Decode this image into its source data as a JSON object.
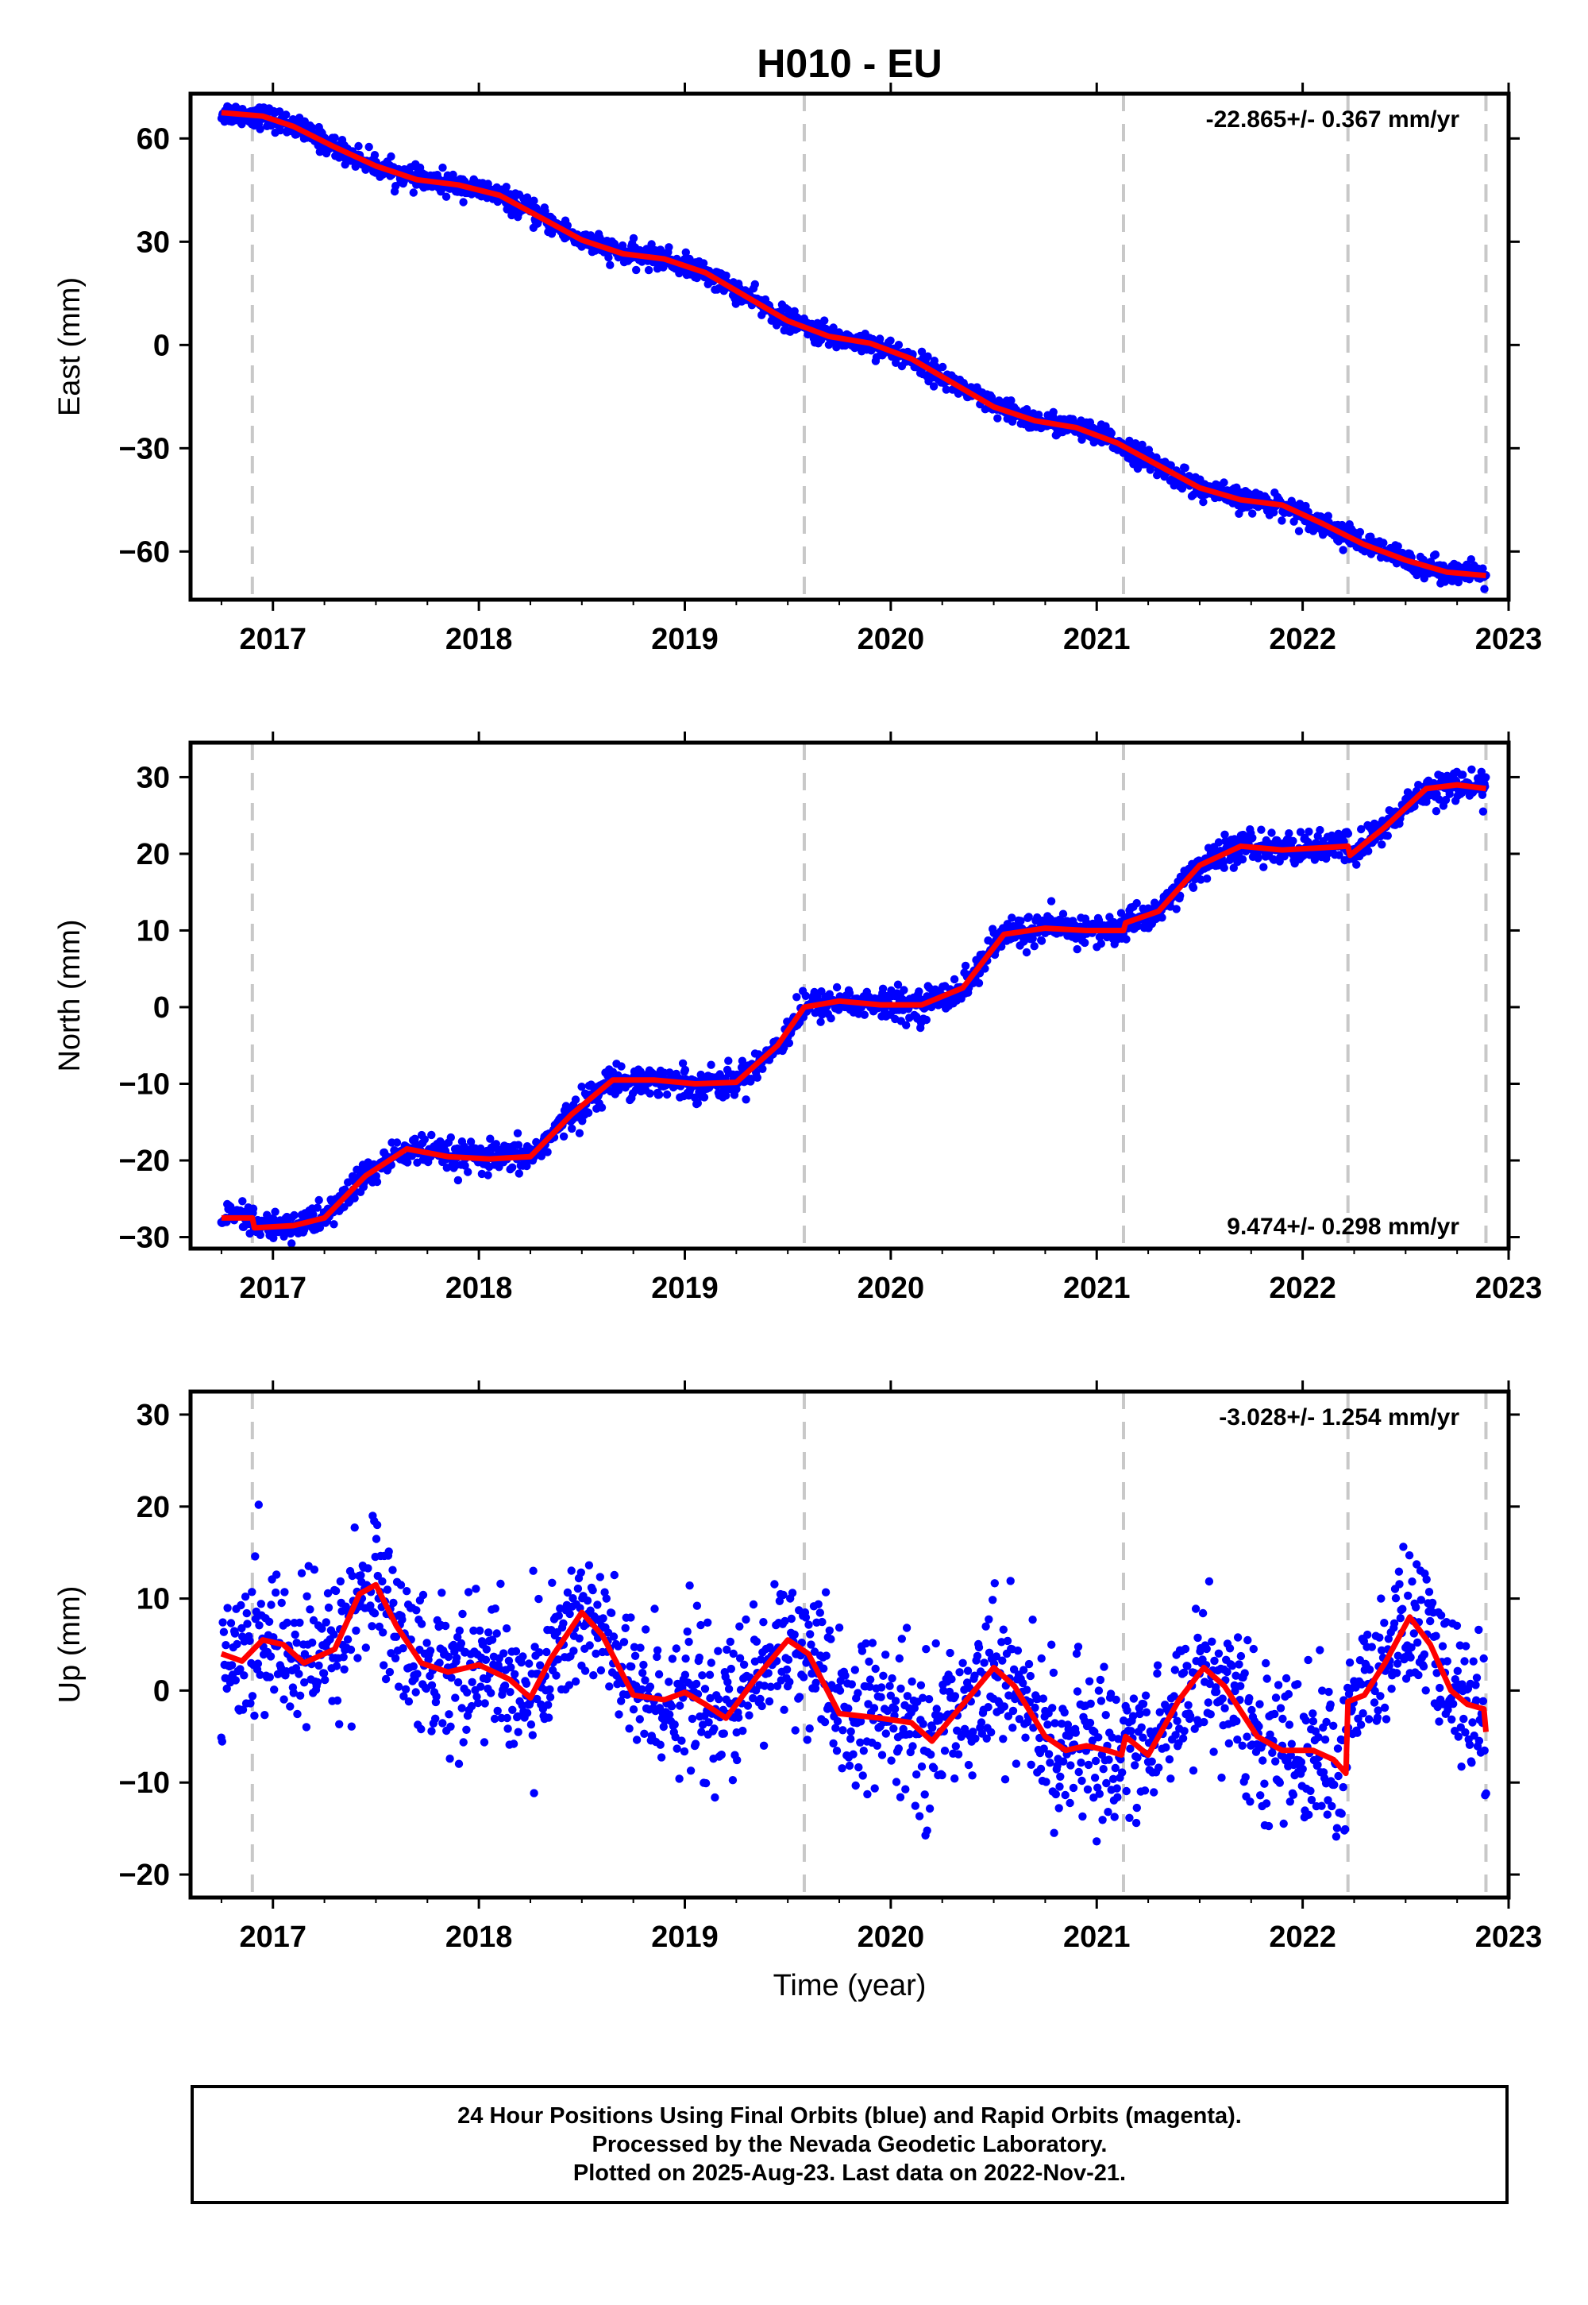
{
  "title": "H010 - EU",
  "xlabel": "Time (year)",
  "footer": {
    "line1": "24 Hour Positions Using Final Orbits (blue) and Rapid Orbits (magenta).",
    "line2": "Processed by the Nevada Geodetic Laboratory.",
    "line3": "Plotted on 2025-Aug-23. Last data on 2022-Nov-21."
  },
  "colors": {
    "points": "#0000ff",
    "fit": "#ff0000",
    "breaks": "#c8c8c8",
    "axes": "#000000"
  },
  "chart_data": [
    {
      "type": "scatter",
      "name": "east",
      "ylabel": "East (mm)",
      "rate_label": "-22.865+/- 0.367 mm/yr",
      "rate_position": "top-right",
      "xlim": [
        2016.6,
        2023.0
      ],
      "ylim": [
        -74,
        73
      ],
      "yticks": [
        60,
        30,
        0,
        -30,
        -60
      ],
      "xticks": [
        2017,
        2018,
        2019,
        2020,
        2021,
        2022,
        2023
      ],
      "breaks": [
        2016.9,
        2019.58,
        2021.13,
        2022.22,
        2022.89
      ],
      "data_range": [
        2016.75,
        2022.89
      ],
      "scatter_noise_mm": 1.6,
      "fit_line": {
        "x": [
          2016.75,
          2016.95,
          2017.1,
          2017.3,
          2017.5,
          2017.7,
          2017.9,
          2018.1,
          2018.3,
          2018.5,
          2018.7,
          2018.9,
          2019.1,
          2019.3,
          2019.5,
          2019.7,
          2019.9,
          2020.1,
          2020.3,
          2020.5,
          2020.7,
          2020.9,
          2021.1,
          2021.3,
          2021.5,
          2021.7,
          2021.9,
          2022.1,
          2022.3,
          2022.5,
          2022.7,
          2022.89
        ],
        "y": [
          67.5,
          66.5,
          63.5,
          57.5,
          52.0,
          48.0,
          46.5,
          43.5,
          37.0,
          30.5,
          26.5,
          25.0,
          21.0,
          14.0,
          7.0,
          2.5,
          0.5,
          -4.0,
          -11.0,
          -18.0,
          -22.0,
          -24.0,
          -28.5,
          -35.0,
          -41.5,
          -45.0,
          -46.5,
          -52.0,
          -58.0,
          -62.5,
          -66.0,
          -67.0
        ]
      }
    },
    {
      "type": "scatter",
      "name": "north",
      "ylabel": "North (mm)",
      "rate_label": "9.474+/- 0.298 mm/yr",
      "rate_position": "bottom-right",
      "xlim": [
        2016.6,
        2023.0
      ],
      "ylim": [
        -31.5,
        34.5
      ],
      "yticks": [
        30,
        20,
        10,
        0,
        -10,
        -20,
        -30
      ],
      "xticks": [
        2017,
        2018,
        2019,
        2020,
        2021,
        2022,
        2023
      ],
      "breaks": [
        2016.9,
        2019.58,
        2021.13,
        2022.22,
        2022.89
      ],
      "data_range": [
        2016.75,
        2022.89
      ],
      "scatter_noise_mm": 1.0,
      "fit_line": {
        "x": [
          2016.75,
          2016.9,
          2016.91,
          2017.1,
          2017.25,
          2017.45,
          2017.65,
          2017.85,
          2018.05,
          2018.25,
          2018.45,
          2018.65,
          2018.85,
          2019.05,
          2019.25,
          2019.45,
          2019.58,
          2019.75,
          2019.95,
          2020.15,
          2020.35,
          2020.55,
          2020.75,
          2020.95,
          2021.13,
          2021.14,
          2021.3,
          2021.5,
          2021.7,
          2021.9,
          2022.1,
          2022.22,
          2022.23,
          2022.4,
          2022.6,
          2022.75,
          2022.89
        ],
        "y": [
          -27.5,
          -27.5,
          -28.8,
          -28.5,
          -27.5,
          -22.0,
          -18.5,
          -19.5,
          -19.8,
          -19.5,
          -14.0,
          -9.5,
          -9.5,
          -10.0,
          -9.8,
          -5.0,
          0.0,
          0.8,
          0.3,
          0.3,
          2.5,
          9.5,
          10.3,
          10.0,
          10.0,
          11.0,
          12.5,
          18.5,
          21.0,
          20.5,
          20.8,
          21.0,
          19.8,
          23.5,
          28.5,
          29.0,
          28.5
        ]
      }
    },
    {
      "type": "scatter",
      "name": "up",
      "ylabel": "Up (mm)",
      "rate_label": "-3.028+/- 1.254 mm/yr",
      "rate_position": "top-right",
      "xlim": [
        2016.6,
        2023.0
      ],
      "ylim": [
        -22.5,
        32.5
      ],
      "yticks": [
        30,
        20,
        10,
        0,
        -10,
        -20
      ],
      "xticks": [
        2017,
        2018,
        2019,
        2020,
        2021,
        2022,
        2023
      ],
      "breaks": [
        2016.9,
        2019.58,
        2021.13,
        2022.22,
        2022.89
      ],
      "data_range": [
        2016.75,
        2022.89
      ],
      "scatter_noise_mm": 4.0,
      "fit_line": {
        "x": [
          2016.75,
          2016.85,
          2016.95,
          2017.05,
          2017.15,
          2017.3,
          2017.42,
          2017.5,
          2017.6,
          2017.72,
          2017.85,
          2018.0,
          2018.15,
          2018.25,
          2018.35,
          2018.5,
          2018.6,
          2018.75,
          2018.9,
          2019.0,
          2019.1,
          2019.2,
          2019.35,
          2019.5,
          2019.6,
          2019.75,
          2019.95,
          2020.1,
          2020.2,
          2020.35,
          2020.5,
          2020.6,
          2020.75,
          2020.85,
          2020.95,
          2021.05,
          2021.12,
          2021.14,
          2021.25,
          2021.4,
          2021.52,
          2021.62,
          2021.78,
          2021.9,
          2022.05,
          2022.15,
          2022.21,
          2022.22,
          2022.3,
          2022.4,
          2022.52,
          2022.62,
          2022.72,
          2022.8,
          2022.88,
          2022.89
        ],
        "y": [
          4.0,
          3.2,
          5.5,
          5.0,
          3.0,
          4.5,
          10.5,
          11.5,
          7.0,
          3.0,
          2.0,
          2.8,
          1.2,
          -0.8,
          3.5,
          8.5,
          6.0,
          -0.5,
          -1.0,
          -0.2,
          -1.5,
          -3.0,
          1.5,
          5.5,
          4.0,
          -2.5,
          -3.0,
          -3.5,
          -5.5,
          -1.5,
          2.5,
          0.5,
          -5.0,
          -6.5,
          -6.0,
          -6.5,
          -7.0,
          -5.0,
          -7.0,
          -1.0,
          2.5,
          0.5,
          -5.0,
          -6.5,
          -6.5,
          -7.5,
          -9.0,
          -1.2,
          -0.5,
          3.0,
          8.0,
          5.0,
          0.0,
          -1.5,
          -2.0,
          -4.5
        ]
      }
    }
  ]
}
